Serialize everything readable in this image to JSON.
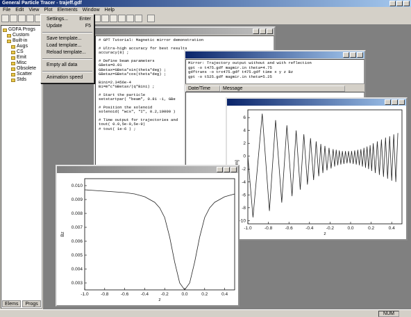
{
  "window": {
    "title": "General Particle Tracer - trajeff.gdf"
  },
  "menu": [
    "File",
    "Edit",
    "View",
    "Plot",
    "Elements",
    "Window",
    "Help"
  ],
  "tree": {
    "root": "GDFA Progs",
    "children": [
      {
        "label": "Custom"
      },
      {
        "label": "Built-in",
        "children": [
          "Augs",
          "CS",
          "Emit",
          "Misc",
          "Obsolete",
          "Scatter",
          "Stds"
        ]
      }
    ]
  },
  "tabs": [
    "Elems",
    "Progs"
  ],
  "dropdown": [
    [
      {
        "label": "Settings...",
        "shortcut": "Enter"
      },
      {
        "label": "Update",
        "shortcut": "F5"
      }
    ],
    [
      {
        "label": "Save template..."
      },
      {
        "label": "Load template..."
      },
      {
        "label": "Reload template..."
      }
    ],
    [
      {
        "label": "Empty all data"
      }
    ],
    [
      {
        "label": "Animation speed"
      }
    ]
  ],
  "editor": {
    "paragraphs": [
      [
        "# GPT Tutorial: Magnetic mirror demonstration"
      ],
      [
        "# Ultra-high accuracy for best results",
        "accuracy(8) ;"
      ],
      [
        "# Define beam parameters",
        "GBeta=0.01",
        "GBetax=GBeta*sin(theta*deg) ;",
        "GBetaz=GBeta*cos(theta*deg) ;"
      ],
      [
        "Bini=2.3456e-4",
        "Bi=m*c*GBetax/(q*Bini) ;"
      ],
      [
        "# Start the particle",
        "setstartpar( \"beam\", 0.81 -1, GBe"
      ],
      [
        "# Position the solenoid",
        "solenoid( \"wcs\", \"I\", 0.2,10000 )"
      ],
      [
        "# Time output for trajectories and",
        "tout( 0.0,5e-9,5e-9)",
        "# tout( 1e-6 ) ;"
      ]
    ]
  },
  "messages": {
    "lines": [
      "Mirror: Trajectory output without and with reflection",
      "gpt -o t475.gdf magmir.in theta=4.75",
      "gdftrans -o trx475.gdf t475.gdf time x y z Bz",
      "gpt -o t525.gdf magmir.in theta=5.25"
    ],
    "columns": [
      "Date/Time",
      "Message"
    ]
  },
  "status": "NUM",
  "chart_data": [
    {
      "type": "line",
      "xlabel": "z",
      "ylabel": "Bz",
      "color": "#222222",
      "x": [
        -1.0,
        -0.8,
        -0.6,
        -0.5,
        -0.4,
        -0.3,
        -0.25,
        -0.2,
        -0.15,
        -0.1,
        -0.05,
        0.0,
        0.05,
        0.1,
        0.15,
        0.2,
        0.25,
        0.3,
        0.4,
        0.5
      ],
      "values": [
        0.0097,
        0.0096,
        0.0095,
        0.0094,
        0.0092,
        0.0088,
        0.0084,
        0.0077,
        0.0063,
        0.0045,
        0.003,
        0.0025,
        0.003,
        0.0045,
        0.0063,
        0.0077,
        0.0084,
        0.0088,
        0.0092,
        0.0094
      ],
      "xlim": [
        -1.0,
        0.5
      ],
      "ylim": [
        0.0025,
        0.0105
      ],
      "xticks": [
        {
          "value": -1.0,
          "label": "-1.0"
        },
        -0.8,
        -0.6,
        -0.4,
        -0.2,
        {
          "value": 0.0,
          "label": "0.0"
        },
        0.2,
        0.4
      ],
      "yticks": [
        0.003,
        0.004,
        0.005,
        0.006,
        0.007,
        0.008,
        0.009,
        {
          "value": 0.01,
          "label": "0.010"
        }
      ]
    },
    {
      "type": "line",
      "xlabel": "z",
      "ylabel": "x [mm]",
      "color": "#222222",
      "x": [
        -1.0,
        -0.95,
        -0.86,
        -0.79,
        -0.73,
        -0.67,
        -0.62,
        -0.57,
        -0.53,
        -0.49,
        -0.455,
        -0.42,
        -0.39,
        -0.36,
        -0.335,
        -0.31,
        -0.29,
        -0.27,
        -0.25,
        -0.23,
        -0.21,
        -0.19,
        -0.17,
        -0.155,
        -0.14,
        -0.125,
        -0.11,
        -0.095,
        -0.08,
        -0.065,
        -0.05,
        -0.035,
        -0.02,
        -0.005,
        0.01,
        0.025,
        0.04,
        0.055,
        0.07,
        0.085,
        0.1,
        0.115,
        0.13,
        0.145,
        0.16,
        0.175,
        0.19,
        0.205,
        0.22,
        0.24,
        0.26,
        0.28,
        0.3,
        0.32,
        0.34,
        0.36,
        0.38,
        0.4,
        0.42,
        0.44,
        0.46
      ],
      "values": [
        0,
        -9.5,
        6.6,
        -8.5,
        5.6,
        -7.2,
        4.8,
        -6.2,
        4.0,
        -5.2,
        3.4,
        -4.4,
        2.8,
        -3.7,
        2.3,
        -3.1,
        1.9,
        -2.6,
        1.6,
        -2.2,
        1.3,
        -1.9,
        1.1,
        -1.6,
        1.0,
        -1.4,
        0.9,
        -1.3,
        0.8,
        -1.2,
        0.8,
        -1.1,
        0.8,
        -1.1,
        0.8,
        -1.2,
        0.9,
        -1.3,
        1.0,
        -1.4,
        1.1,
        -1.6,
        1.3,
        -1.8,
        1.5,
        -2.0,
        1.7,
        -2.3,
        2.0,
        -2.6,
        2.3,
        -2.9,
        2.6,
        -3.2,
        2.9,
        -3.5,
        3.1,
        -3.8,
        3.4,
        -4.0,
        3.6
      ],
      "xlim": [
        -1.0,
        0.5
      ],
      "ylim": [
        -10.5,
        7.2
      ],
      "xticks": [
        {
          "value": -1.0,
          "label": "-1.0"
        },
        -0.8,
        -0.6,
        -0.4,
        -0.2,
        {
          "value": 0.0,
          "label": "0.0"
        },
        0.2,
        0.4
      ],
      "yticks": [
        -10,
        -8,
        -6,
        -4,
        -2,
        0,
        2,
        4,
        6
      ]
    }
  ]
}
